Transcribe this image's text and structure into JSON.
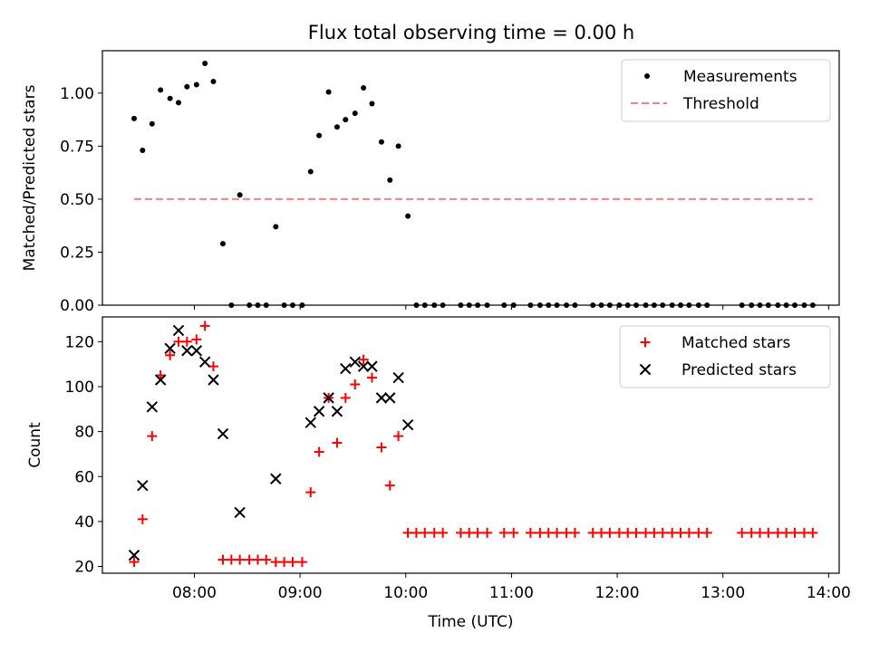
{
  "title": "Flux total observing time = 0.00 h",
  "chart_data": [
    {
      "type": "scatter",
      "ylabel": "Matched/Predicted stars",
      "ylim": [
        0,
        1.2
      ],
      "yticks": [
        0,
        0.25,
        0.5,
        0.75,
        1.0
      ],
      "ytick_labels": [
        "0.00",
        "0.25",
        "0.50",
        "0.75",
        "1.00"
      ],
      "xlim": [
        7.13,
        14.1
      ],
      "legend": {
        "placement": "top-right",
        "entries": [
          "Measurements",
          "Threshold"
        ]
      },
      "series": [
        {
          "name": "Measurements",
          "marker": "dot",
          "color": "#000000",
          "x": [
            7.43,
            7.51,
            7.6,
            7.68,
            7.77,
            7.85,
            7.93,
            8.02,
            8.1,
            8.18,
            8.27,
            8.35,
            8.43,
            8.52,
            8.6,
            8.68,
            8.77,
            8.85,
            8.93,
            9.02,
            9.1,
            9.18,
            9.27,
            9.35,
            9.43,
            9.52,
            9.6,
            9.68,
            9.77,
            9.85,
            9.93,
            10.02,
            10.1,
            10.18,
            10.27,
            10.35,
            10.52,
            10.6,
            10.68,
            10.77,
            10.93,
            11.02,
            11.18,
            11.27,
            11.35,
            11.43,
            11.52,
            11.6,
            11.77,
            11.85,
            11.93,
            12.02,
            12.1,
            12.18,
            12.27,
            12.35,
            12.43,
            12.52,
            12.6,
            12.68,
            12.77,
            12.85,
            13.18,
            13.27,
            13.35,
            13.43,
            13.52,
            13.6,
            13.68,
            13.77,
            13.85
          ],
          "y": [
            0.88,
            0.73,
            0.855,
            1.015,
            0.975,
            0.955,
            1.03,
            1.04,
            1.14,
            1.055,
            0.29,
            0.0,
            0.52,
            0.0,
            0.0,
            0.0,
            0.37,
            0.0,
            0.0,
            0.0,
            0.63,
            0.8,
            1.005,
            0.84,
            0.875,
            0.905,
            1.025,
            0.95,
            0.77,
            0.59,
            0.75,
            0.42,
            0.0,
            0.0,
            0.0,
            0.0,
            0.0,
            0.0,
            0.0,
            0.0,
            0.0,
            0.0,
            0.0,
            0.0,
            0.0,
            0.0,
            0.0,
            0.0,
            0.0,
            0.0,
            0.0,
            0.0,
            0.0,
            0.0,
            0.0,
            0.0,
            0.0,
            0.0,
            0.0,
            0.0,
            0.0,
            0.0,
            0.0,
            0.0,
            0.0,
            0.0,
            0.0,
            0.0,
            0.0,
            0.0,
            0.0
          ]
        },
        {
          "name": "Threshold",
          "type": "line",
          "style": "dashed",
          "color": "#ff7f7f",
          "x": [
            7.43,
            13.85
          ],
          "y": [
            0.5,
            0.5
          ]
        }
      ]
    },
    {
      "type": "scatter",
      "xlabel": "Time (UTC)",
      "ylabel": "Count",
      "ylim": [
        17,
        131
      ],
      "yticks": [
        20,
        40,
        60,
        80,
        100,
        120
      ],
      "ytick_labels": [
        "20",
        "40",
        "60",
        "80",
        "100",
        "120"
      ],
      "xlim": [
        7.13,
        14.1
      ],
      "xticks": [
        8,
        9,
        10,
        11,
        12,
        13,
        14
      ],
      "xtick_labels": [
        "08:00",
        "09:00",
        "10:00",
        "11:00",
        "12:00",
        "13:00",
        "14:00"
      ],
      "legend": {
        "placement": "top-right",
        "entries": [
          "Matched stars",
          "Predicted stars"
        ]
      },
      "series": [
        {
          "name": "Matched stars",
          "marker": "plus",
          "color": "#ff0000",
          "x": [
            7.43,
            7.51,
            7.6,
            7.68,
            7.77,
            7.85,
            7.93,
            8.02,
            8.1,
            8.18,
            8.27,
            8.35,
            8.43,
            8.52,
            8.6,
            8.68,
            8.77,
            8.85,
            8.93,
            9.02,
            9.1,
            9.18,
            9.27,
            9.35,
            9.43,
            9.52,
            9.6,
            9.68,
            9.77,
            9.85,
            9.93,
            10.02,
            10.1,
            10.18,
            10.27,
            10.35,
            10.52,
            10.6,
            10.68,
            10.77,
            10.93,
            11.02,
            11.18,
            11.27,
            11.35,
            11.43,
            11.52,
            11.6,
            11.77,
            11.85,
            11.93,
            12.02,
            12.1,
            12.18,
            12.27,
            12.35,
            12.43,
            12.52,
            12.6,
            12.68,
            12.77,
            12.85,
            13.18,
            13.27,
            13.35,
            13.43,
            13.52,
            13.6,
            13.68,
            13.77,
            13.85
          ],
          "y": [
            22,
            41,
            78,
            105,
            114,
            120,
            120,
            121,
            127,
            109,
            23,
            23,
            23,
            23,
            23,
            23,
            22,
            22,
            22,
            22,
            53,
            71,
            95,
            75,
            95,
            101,
            112,
            104,
            73,
            56,
            78,
            35,
            35,
            35,
            35,
            35,
            35,
            35,
            35,
            35,
            35,
            35,
            35,
            35,
            35,
            35,
            35,
            35,
            35,
            35,
            35,
            35,
            35,
            35,
            35,
            35,
            35,
            35,
            35,
            35,
            35,
            35,
            35,
            35,
            35,
            35,
            35,
            35,
            35,
            35,
            35
          ]
        },
        {
          "name": "Predicted stars",
          "marker": "x",
          "color": "#000000",
          "x": [
            7.43,
            7.51,
            7.6,
            7.68,
            7.77,
            7.85,
            7.93,
            8.02,
            8.1,
            8.18,
            8.27,
            8.43,
            8.77,
            9.1,
            9.18,
            9.27,
            9.35,
            9.43,
            9.52,
            9.6,
            9.68,
            9.77,
            9.85,
            9.93,
            10.02
          ],
          "y": [
            25,
            56,
            91,
            103,
            117,
            125,
            116,
            116,
            111,
            103,
            79,
            44,
            59,
            84,
            89,
            95,
            89,
            108,
            111,
            109,
            109,
            95,
            95,
            104,
            83
          ]
        }
      ]
    }
  ]
}
